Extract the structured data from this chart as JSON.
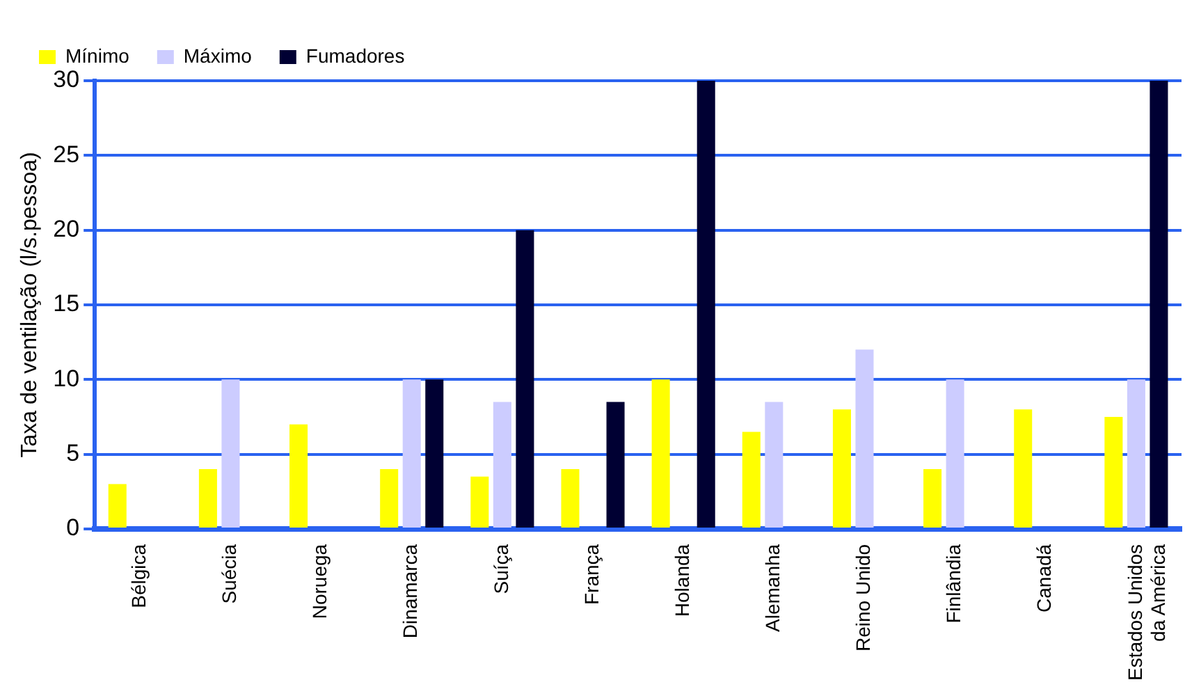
{
  "chart_data": {
    "type": "bar",
    "ylabel": "Taxa de ventilação (l/s.pessoa)",
    "categories": [
      "Bélgica",
      "Suécia",
      "Noruega",
      "Dinamarca",
      "Suíça",
      "França",
      "Holanda",
      "Alemanha",
      "Reino Unido",
      "Finlândia",
      "Canadá",
      "Estados Unidos da América"
    ],
    "series": [
      {
        "name": "Mínimo",
        "color": "#ffff00",
        "values": [
          3,
          4,
          7,
          4,
          3.5,
          4,
          10,
          6.5,
          8,
          4,
          8,
          7.5
        ]
      },
      {
        "name": "Máximo",
        "color": "#ccccff",
        "values": [
          null,
          10,
          null,
          10,
          8.5,
          null,
          null,
          8.5,
          12,
          10,
          null,
          10
        ]
      },
      {
        "name": "Fumadores",
        "color": "#000033",
        "values": [
          null,
          null,
          null,
          10,
          20,
          8.5,
          30,
          null,
          null,
          null,
          null,
          30
        ]
      }
    ],
    "ylim": [
      0,
      30
    ],
    "yticks": [
      0,
      5,
      10,
      15,
      20,
      25,
      30
    ],
    "grid": "y",
    "legend": "top left"
  }
}
